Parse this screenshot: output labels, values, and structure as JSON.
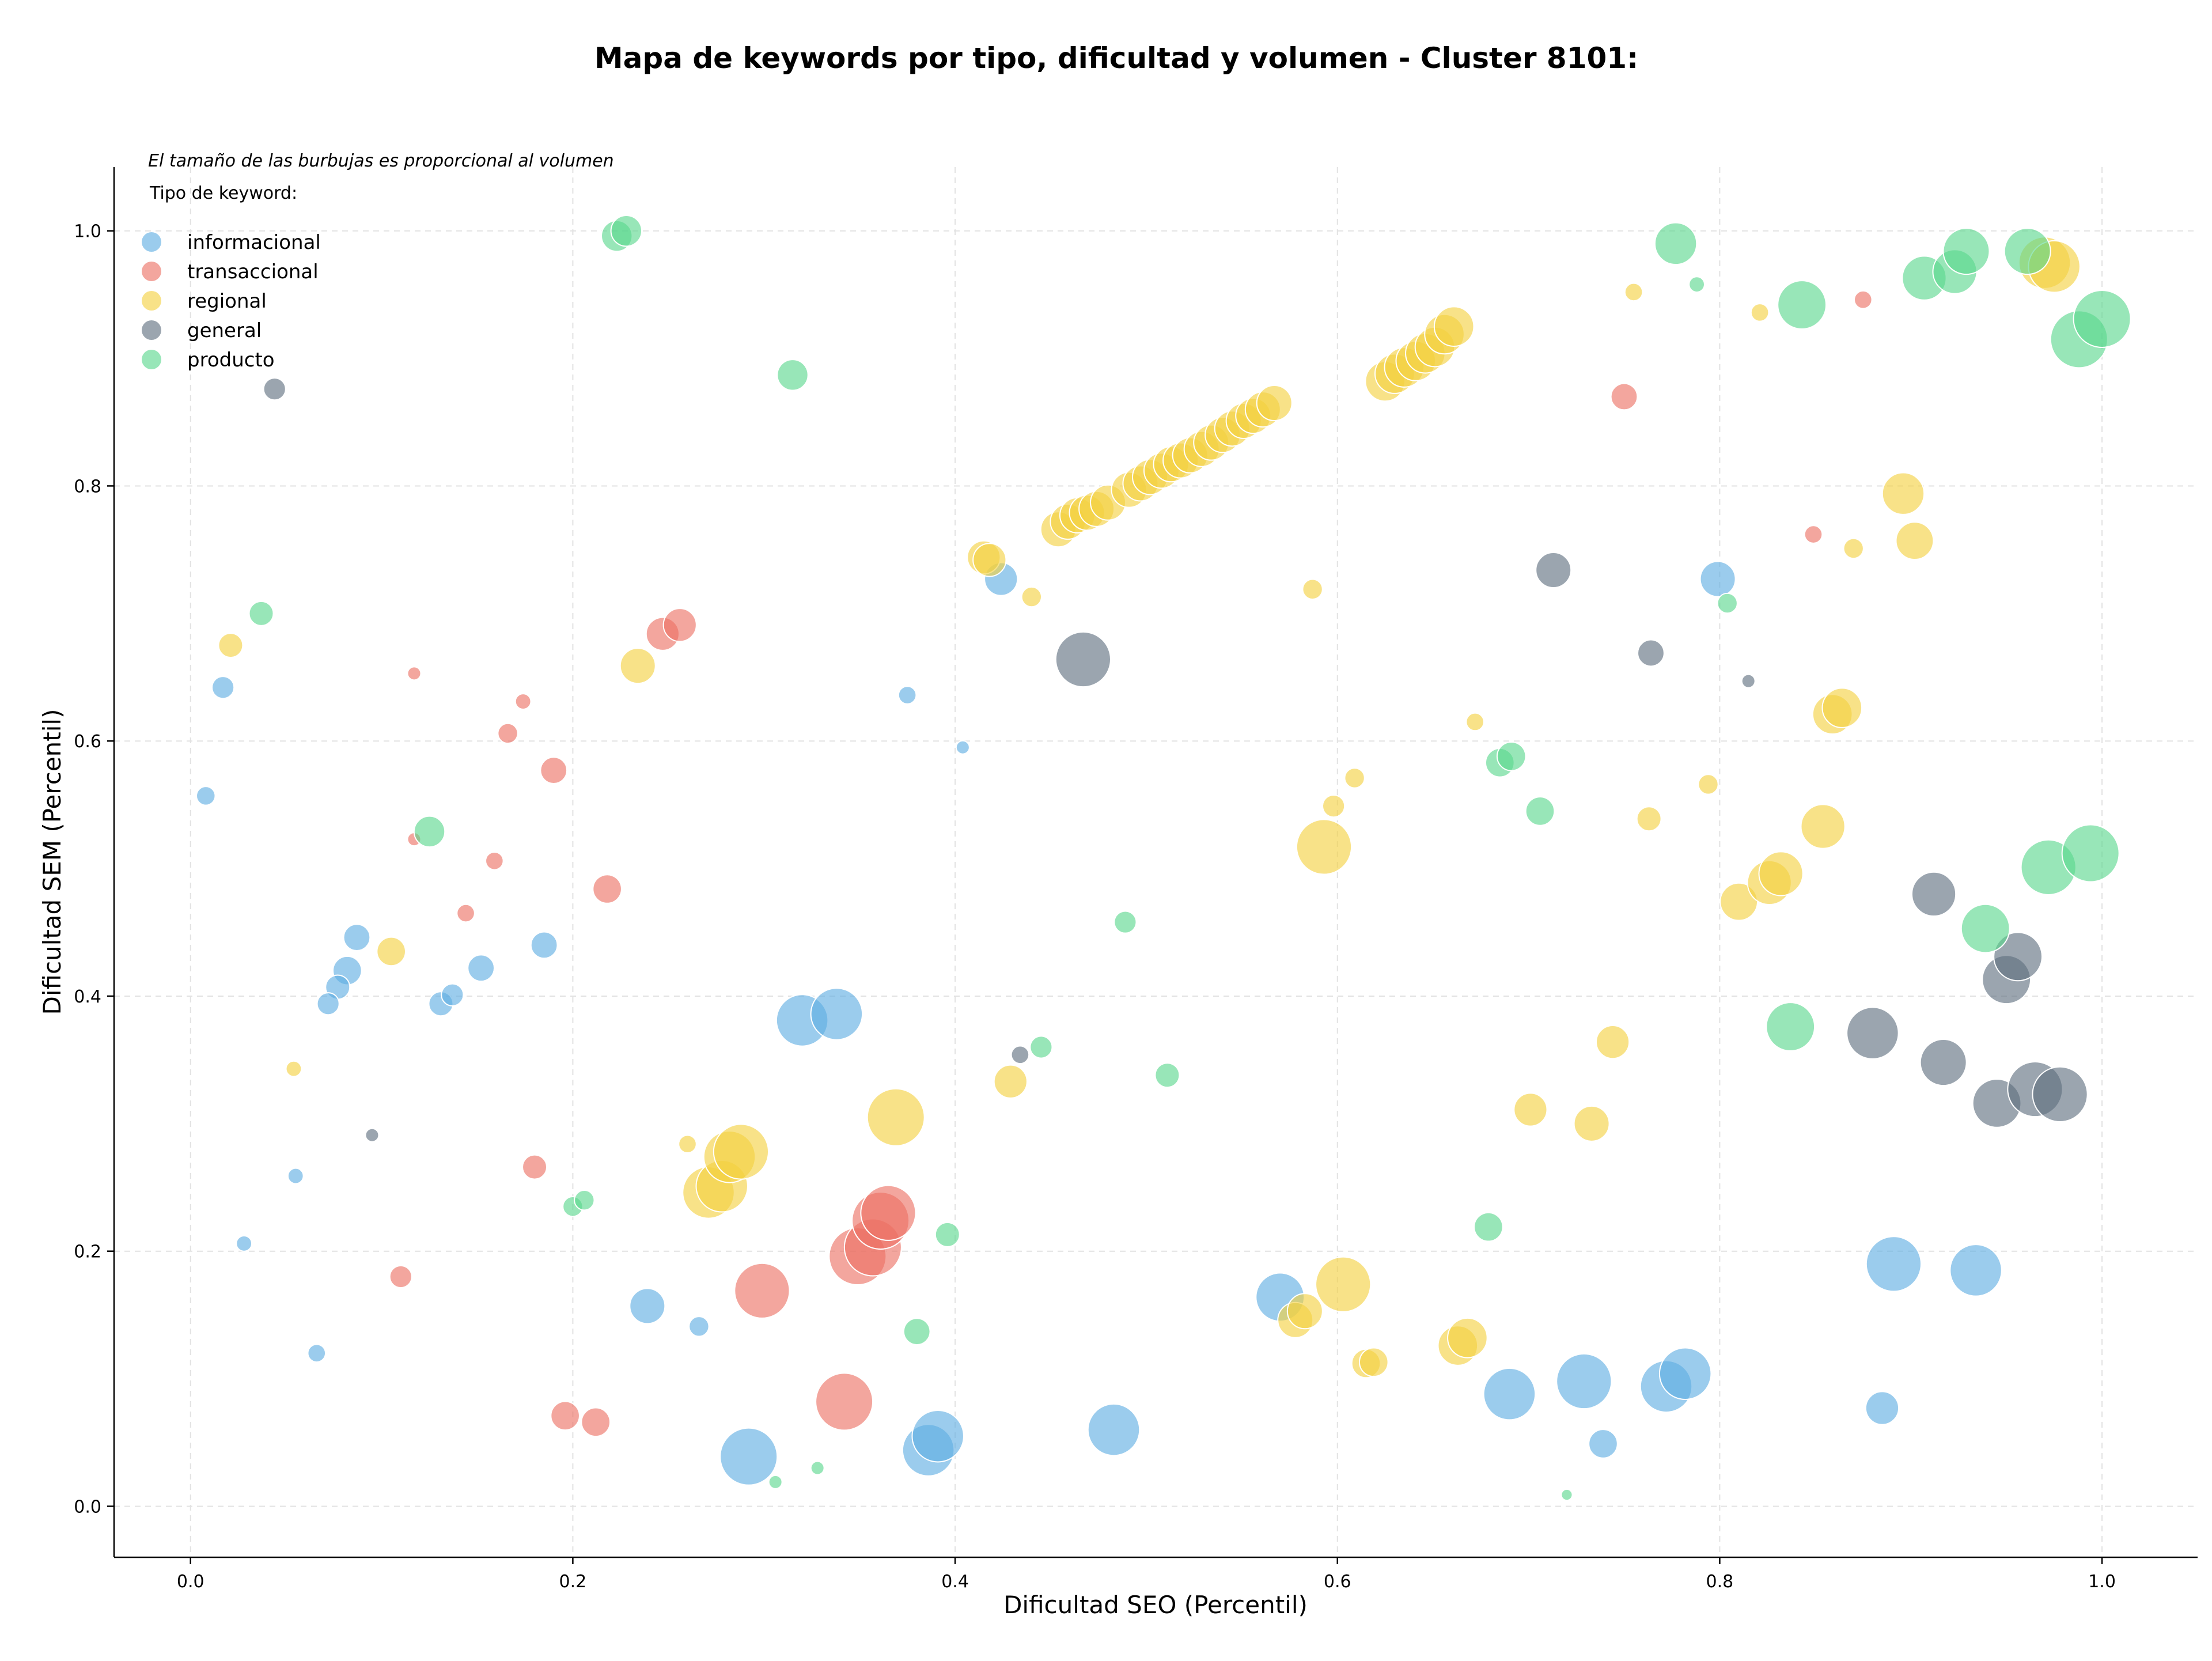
{
  "chart_data": {
    "type": "scatter",
    "title": "Mapa de keywords por tipo, dificultad y volumen - Cluster 8101:",
    "xlabel": "Dificultad SEO (Percentil)",
    "ylabel": "Dificultad SEM (Percentil)",
    "xlim": [
      -0.04,
      1.05
    ],
    "ylim": [
      -0.04,
      1.05
    ],
    "x_ticks": [
      "0.0",
      "0.2",
      "0.4",
      "0.6",
      "0.8",
      "1.0"
    ],
    "y_ticks": [
      "0.0",
      "0.2",
      "0.4",
      "0.6",
      "0.8",
      "1.0"
    ],
    "grid": true,
    "annotation": "El tamaño de las burbujas es proporcional al volumen",
    "legend_title": "Tipo de keyword:",
    "legend_position": "top-left",
    "series": [
      {
        "name": "informacional",
        "color": "#5dade2",
        "points": [
          {
            "x": 0.017,
            "y": 0.642,
            "v": 18
          },
          {
            "x": 0.008,
            "y": 0.557,
            "v": 15
          },
          {
            "x": 0.028,
            "y": 0.206,
            "v": 12
          },
          {
            "x": 0.066,
            "y": 0.12,
            "v": 14
          },
          {
            "x": 0.055,
            "y": 0.259,
            "v": 12
          },
          {
            "x": 0.087,
            "y": 0.446,
            "v": 22
          },
          {
            "x": 0.082,
            "y": 0.42,
            "v": 24
          },
          {
            "x": 0.077,
            "y": 0.407,
            "v": 20
          },
          {
            "x": 0.072,
            "y": 0.394,
            "v": 18
          },
          {
            "x": 0.131,
            "y": 0.394,
            "v": 20
          },
          {
            "x": 0.137,
            "y": 0.401,
            "v": 18
          },
          {
            "x": 0.152,
            "y": 0.422,
            "v": 22
          },
          {
            "x": 0.185,
            "y": 0.44,
            "v": 22
          },
          {
            "x": 0.32,
            "y": 0.381,
            "v": 45
          },
          {
            "x": 0.338,
            "y": 0.386,
            "v": 45
          },
          {
            "x": 0.239,
            "y": 0.157,
            "v": 30
          },
          {
            "x": 0.266,
            "y": 0.141,
            "v": 16
          },
          {
            "x": 0.292,
            "y": 0.039,
            "v": 50
          },
          {
            "x": 0.386,
            "y": 0.044,
            "v": 45
          },
          {
            "x": 0.391,
            "y": 0.055,
            "v": 45
          },
          {
            "x": 0.375,
            "y": 0.636,
            "v": 14
          },
          {
            "x": 0.404,
            "y": 0.595,
            "v": 10
          },
          {
            "x": 0.424,
            "y": 0.727,
            "v": 28
          },
          {
            "x": 0.483,
            "y": 0.06,
            "v": 45
          },
          {
            "x": 0.57,
            "y": 0.164,
            "v": 42
          },
          {
            "x": 0.69,
            "y": 0.088,
            "v": 45
          },
          {
            "x": 0.729,
            "y": 0.098,
            "v": 48
          },
          {
            "x": 0.739,
            "y": 0.049,
            "v": 24
          },
          {
            "x": 0.772,
            "y": 0.094,
            "v": 45
          },
          {
            "x": 0.782,
            "y": 0.104,
            "v": 45
          },
          {
            "x": 0.799,
            "y": 0.727,
            "v": 30
          },
          {
            "x": 0.885,
            "y": 0.077,
            "v": 28
          },
          {
            "x": 0.891,
            "y": 0.19,
            "v": 48
          },
          {
            "x": 0.934,
            "y": 0.185,
            "v": 45
          }
        ]
      },
      {
        "name": "transaccional",
        "color": "#ec7063",
        "points": [
          {
            "x": 0.117,
            "y": 0.653,
            "v": 10
          },
          {
            "x": 0.174,
            "y": 0.631,
            "v": 12
          },
          {
            "x": 0.166,
            "y": 0.606,
            "v": 16
          },
          {
            "x": 0.19,
            "y": 0.577,
            "v": 22
          },
          {
            "x": 0.117,
            "y": 0.523,
            "v": 10
          },
          {
            "x": 0.159,
            "y": 0.506,
            "v": 14
          },
          {
            "x": 0.144,
            "y": 0.465,
            "v": 14
          },
          {
            "x": 0.218,
            "y": 0.484,
            "v": 24
          },
          {
            "x": 0.247,
            "y": 0.684,
            "v": 28
          },
          {
            "x": 0.256,
            "y": 0.691,
            "v": 28
          },
          {
            "x": 0.18,
            "y": 0.266,
            "v": 20
          },
          {
            "x": 0.11,
            "y": 0.18,
            "v": 18
          },
          {
            "x": 0.196,
            "y": 0.071,
            "v": 24
          },
          {
            "x": 0.212,
            "y": 0.066,
            "v": 24
          },
          {
            "x": 0.299,
            "y": 0.169,
            "v": 48
          },
          {
            "x": 0.342,
            "y": 0.082,
            "v": 50
          },
          {
            "x": 0.349,
            "y": 0.196,
            "v": 50
          },
          {
            "x": 0.357,
            "y": 0.203,
            "v": 50
          },
          {
            "x": 0.361,
            "y": 0.224,
            "v": 50
          },
          {
            "x": 0.365,
            "y": 0.23,
            "v": 48
          },
          {
            "x": 0.75,
            "y": 0.87,
            "v": 22
          },
          {
            "x": 0.849,
            "y": 0.762,
            "v": 14
          },
          {
            "x": 0.875,
            "y": 0.946,
            "v": 14
          }
        ]
      },
      {
        "name": "regional",
        "color": "#f4d03f",
        "points": [
          {
            "x": 0.021,
            "y": 0.675,
            "v": 20
          },
          {
            "x": 0.105,
            "y": 0.435,
            "v": 24
          },
          {
            "x": 0.054,
            "y": 0.343,
            "v": 12
          },
          {
            "x": 0.234,
            "y": 0.659,
            "v": 30
          },
          {
            "x": 0.26,
            "y": 0.284,
            "v": 14
          },
          {
            "x": 0.271,
            "y": 0.246,
            "v": 45
          },
          {
            "x": 0.278,
            "y": 0.251,
            "v": 45
          },
          {
            "x": 0.282,
            "y": 0.274,
            "v": 45
          },
          {
            "x": 0.288,
            "y": 0.278,
            "v": 48
          },
          {
            "x": 0.369,
            "y": 0.305,
            "v": 50
          },
          {
            "x": 0.415,
            "y": 0.744,
            "v": 28
          },
          {
            "x": 0.418,
            "y": 0.742,
            "v": 28
          },
          {
            "x": 0.429,
            "y": 0.333,
            "v": 28
          },
          {
            "x": 0.44,
            "y": 0.713,
            "v": 16
          },
          {
            "x": 0.454,
            "y": 0.766,
            "v": 30
          },
          {
            "x": 0.459,
            "y": 0.772,
            "v": 30
          },
          {
            "x": 0.464,
            "y": 0.777,
            "v": 30
          },
          {
            "x": 0.469,
            "y": 0.779,
            "v": 30
          },
          {
            "x": 0.474,
            "y": 0.782,
            "v": 30
          },
          {
            "x": 0.48,
            "y": 0.787,
            "v": 30
          },
          {
            "x": 0.491,
            "y": 0.797,
            "v": 30
          },
          {
            "x": 0.497,
            "y": 0.802,
            "v": 30
          },
          {
            "x": 0.502,
            "y": 0.807,
            "v": 30
          },
          {
            "x": 0.508,
            "y": 0.812,
            "v": 30
          },
          {
            "x": 0.513,
            "y": 0.817,
            "v": 30
          },
          {
            "x": 0.518,
            "y": 0.82,
            "v": 30
          },
          {
            "x": 0.523,
            "y": 0.824,
            "v": 30
          },
          {
            "x": 0.529,
            "y": 0.829,
            "v": 30
          },
          {
            "x": 0.534,
            "y": 0.834,
            "v": 30
          },
          {
            "x": 0.54,
            "y": 0.84,
            "v": 30
          },
          {
            "x": 0.545,
            "y": 0.845,
            "v": 30
          },
          {
            "x": 0.551,
            "y": 0.851,
            "v": 30
          },
          {
            "x": 0.556,
            "y": 0.855,
            "v": 30
          },
          {
            "x": 0.561,
            "y": 0.86,
            "v": 30
          },
          {
            "x": 0.567,
            "y": 0.865,
            "v": 30
          },
          {
            "x": 0.587,
            "y": 0.719,
            "v": 16
          },
          {
            "x": 0.593,
            "y": 0.517,
            "v": 48
          },
          {
            "x": 0.598,
            "y": 0.549,
            "v": 18
          },
          {
            "x": 0.609,
            "y": 0.571,
            "v": 16
          },
          {
            "x": 0.603,
            "y": 0.174,
            "v": 48
          },
          {
            "x": 0.578,
            "y": 0.146,
            "v": 30
          },
          {
            "x": 0.583,
            "y": 0.153,
            "v": 30
          },
          {
            "x": 0.615,
            "y": 0.112,
            "v": 24
          },
          {
            "x": 0.619,
            "y": 0.113,
            "v": 24
          },
          {
            "x": 0.625,
            "y": 0.882,
            "v": 34
          },
          {
            "x": 0.63,
            "y": 0.888,
            "v": 34
          },
          {
            "x": 0.635,
            "y": 0.893,
            "v": 34
          },
          {
            "x": 0.641,
            "y": 0.898,
            "v": 34
          },
          {
            "x": 0.646,
            "y": 0.904,
            "v": 34
          },
          {
            "x": 0.651,
            "y": 0.909,
            "v": 34
          },
          {
            "x": 0.656,
            "y": 0.919,
            "v": 34
          },
          {
            "x": 0.661,
            "y": 0.925,
            "v": 34
          },
          {
            "x": 0.663,
            "y": 0.126,
            "v": 34
          },
          {
            "x": 0.668,
            "y": 0.132,
            "v": 34
          },
          {
            "x": 0.672,
            "y": 0.615,
            "v": 14
          },
          {
            "x": 0.701,
            "y": 0.311,
            "v": 28
          },
          {
            "x": 0.733,
            "y": 0.3,
            "v": 30
          },
          {
            "x": 0.744,
            "y": 0.364,
            "v": 28
          },
          {
            "x": 0.755,
            "y": 0.952,
            "v": 14
          },
          {
            "x": 0.763,
            "y": 0.539,
            "v": 20
          },
          {
            "x": 0.794,
            "y": 0.566,
            "v": 16
          },
          {
            "x": 0.81,
            "y": 0.474,
            "v": 32
          },
          {
            "x": 0.821,
            "y": 0.936,
            "v": 14
          },
          {
            "x": 0.826,
            "y": 0.489,
            "v": 38
          },
          {
            "x": 0.832,
            "y": 0.496,
            "v": 38
          },
          {
            "x": 0.854,
            "y": 0.533,
            "v": 38
          },
          {
            "x": 0.859,
            "y": 0.621,
            "v": 34
          },
          {
            "x": 0.864,
            "y": 0.626,
            "v": 34
          },
          {
            "x": 0.87,
            "y": 0.751,
            "v": 16
          },
          {
            "x": 0.896,
            "y": 0.794,
            "v": 36
          },
          {
            "x": 0.902,
            "y": 0.757,
            "v": 32
          },
          {
            "x": 0.97,
            "y": 0.975,
            "v": 45
          },
          {
            "x": 0.975,
            "y": 0.972,
            "v": 45
          }
        ]
      },
      {
        "name": "general",
        "color": "#5d6d7e",
        "points": [
          {
            "x": 0.044,
            "y": 0.876,
            "v": 18
          },
          {
            "x": 0.095,
            "y": 0.291,
            "v": 10
          },
          {
            "x": 0.434,
            "y": 0.354,
            "v": 14
          },
          {
            "x": 0.467,
            "y": 0.664,
            "v": 48
          },
          {
            "x": 0.713,
            "y": 0.734,
            "v": 30
          },
          {
            "x": 0.764,
            "y": 0.669,
            "v": 22
          },
          {
            "x": 0.815,
            "y": 0.647,
            "v": 10
          },
          {
            "x": 0.88,
            "y": 0.371,
            "v": 45
          },
          {
            "x": 0.912,
            "y": 0.48,
            "v": 38
          },
          {
            "x": 0.917,
            "y": 0.348,
            "v": 40
          },
          {
            "x": 0.945,
            "y": 0.316,
            "v": 42
          },
          {
            "x": 0.95,
            "y": 0.413,
            "v": 42
          },
          {
            "x": 0.956,
            "y": 0.431,
            "v": 42
          },
          {
            "x": 0.965,
            "y": 0.327,
            "v": 48
          },
          {
            "x": 0.978,
            "y": 0.323,
            "v": 48
          }
        ]
      },
      {
        "name": "producto",
        "color": "#58d68d",
        "points": [
          {
            "x": 0.037,
            "y": 0.7,
            "v": 20
          },
          {
            "x": 0.125,
            "y": 0.529,
            "v": 26
          },
          {
            "x": 0.2,
            "y": 0.235,
            "v": 16
          },
          {
            "x": 0.206,
            "y": 0.24,
            "v": 16
          },
          {
            "x": 0.223,
            "y": 0.996,
            "v": 26
          },
          {
            "x": 0.228,
            "y": 1.0,
            "v": 26
          },
          {
            "x": 0.315,
            "y": 0.887,
            "v": 26
          },
          {
            "x": 0.306,
            "y": 0.019,
            "v": 10
          },
          {
            "x": 0.328,
            "y": 0.03,
            "v": 10
          },
          {
            "x": 0.38,
            "y": 0.137,
            "v": 22
          },
          {
            "x": 0.396,
            "y": 0.213,
            "v": 20
          },
          {
            "x": 0.445,
            "y": 0.36,
            "v": 18
          },
          {
            "x": 0.489,
            "y": 0.458,
            "v": 18
          },
          {
            "x": 0.511,
            "y": 0.338,
            "v": 20
          },
          {
            "x": 0.679,
            "y": 0.219,
            "v": 24
          },
          {
            "x": 0.685,
            "y": 0.583,
            "v": 24
          },
          {
            "x": 0.691,
            "y": 0.588,
            "v": 24
          },
          {
            "x": 0.706,
            "y": 0.545,
            "v": 24
          },
          {
            "x": 0.72,
            "y": 0.009,
            "v": 8
          },
          {
            "x": 0.777,
            "y": 0.99,
            "v": 36
          },
          {
            "x": 0.788,
            "y": 0.958,
            "v": 12
          },
          {
            "x": 0.804,
            "y": 0.708,
            "v": 16
          },
          {
            "x": 0.837,
            "y": 0.376,
            "v": 42
          },
          {
            "x": 0.843,
            "y": 0.942,
            "v": 42
          },
          {
            "x": 0.907,
            "y": 0.963,
            "v": 38
          },
          {
            "x": 0.923,
            "y": 0.968,
            "v": 38
          },
          {
            "x": 0.929,
            "y": 0.984,
            "v": 40
          },
          {
            "x": 0.939,
            "y": 0.453,
            "v": 42
          },
          {
            "x": 0.961,
            "y": 0.984,
            "v": 40
          },
          {
            "x": 0.972,
            "y": 0.501,
            "v": 48
          },
          {
            "x": 0.988,
            "y": 0.915,
            "v": 50
          },
          {
            "x": 0.994,
            "y": 0.512,
            "v": 50
          },
          {
            "x": 1.0,
            "y": 0.931,
            "v": 50
          }
        ]
      }
    ]
  }
}
